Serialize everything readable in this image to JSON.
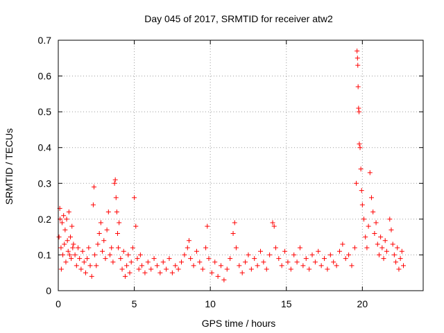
{
  "chart_data": {
    "type": "scatter",
    "title": "Day 045 of 2017, SRMTID for receiver atw2",
    "xlabel": "GPS time / hours",
    "ylabel": "SRMTID / TECUs",
    "xlim": [
      0,
      24
    ],
    "ylim": [
      0,
      0.7
    ],
    "x_ticks": [
      0,
      5,
      10,
      15,
      20
    ],
    "y_ticks": [
      0,
      0.1,
      0.2,
      0.3,
      0.4,
      0.5,
      0.6,
      0.7
    ],
    "x_tick_labels": [
      "0",
      "5",
      "10",
      "15",
      "20"
    ],
    "y_tick_labels": [
      "0",
      "0.1",
      "0.2",
      "0.3",
      "0.4",
      "0.5",
      "0.6",
      "0.7"
    ],
    "grid": true,
    "marker": "+",
    "series_color": "#ff0000",
    "series": [
      {
        "name": "SRMTID",
        "points": [
          [
            0.05,
            0.15
          ],
          [
            0.1,
            0.23
          ],
          [
            0.12,
            0.2
          ],
          [
            0.18,
            0.12
          ],
          [
            0.2,
            0.06
          ],
          [
            0.25,
            0.19
          ],
          [
            0.3,
            0.1
          ],
          [
            0.35,
            0.21
          ],
          [
            0.4,
            0.13
          ],
          [
            0.45,
            0.17
          ],
          [
            0.5,
            0.08
          ],
          [
            0.55,
            0.2
          ],
          [
            0.6,
            0.14
          ],
          [
            0.65,
            0.11
          ],
          [
            0.7,
            0.22
          ],
          [
            0.75,
            0.1
          ],
          [
            0.8,
            0.15
          ],
          [
            0.85,
            0.09
          ],
          [
            0.9,
            0.18
          ],
          [
            0.95,
            0.12
          ],
          [
            1.0,
            0.13
          ],
          [
            1.1,
            0.1
          ],
          [
            1.2,
            0.07
          ],
          [
            1.3,
            0.12
          ],
          [
            1.4,
            0.09
          ],
          [
            1.5,
            0.06
          ],
          [
            1.6,
            0.11
          ],
          [
            1.7,
            0.08
          ],
          [
            1.8,
            0.05
          ],
          [
            1.9,
            0.09
          ],
          [
            2.0,
            0.12
          ],
          [
            2.1,
            0.07
          ],
          [
            2.2,
            0.04
          ],
          [
            2.3,
            0.24
          ],
          [
            2.35,
            0.29
          ],
          [
            2.4,
            0.1
          ],
          [
            2.5,
            0.07
          ],
          [
            2.6,
            0.13
          ],
          [
            2.7,
            0.16
          ],
          [
            2.8,
            0.19
          ],
          [
            2.9,
            0.11
          ],
          [
            3.0,
            0.14
          ],
          [
            3.1,
            0.09
          ],
          [
            3.2,
            0.17
          ],
          [
            3.3,
            0.22
          ],
          [
            3.4,
            0.1
          ],
          [
            3.5,
            0.12
          ],
          [
            3.6,
            0.08
          ],
          [
            3.7,
            0.3
          ],
          [
            3.75,
            0.31
          ],
          [
            3.8,
            0.26
          ],
          [
            3.85,
            0.22
          ],
          [
            3.9,
            0.16
          ],
          [
            3.95,
            0.12
          ],
          [
            4.0,
            0.19
          ],
          [
            4.1,
            0.09
          ],
          [
            4.2,
            0.06
          ],
          [
            4.3,
            0.11
          ],
          [
            4.4,
            0.04
          ],
          [
            4.5,
            0.07
          ],
          [
            4.6,
            0.1
          ],
          [
            4.7,
            0.05
          ],
          [
            4.8,
            0.08
          ],
          [
            4.9,
            0.12
          ],
          [
            5.0,
            0.26
          ],
          [
            5.1,
            0.18
          ],
          [
            5.2,
            0.09
          ],
          [
            5.3,
            0.06
          ],
          [
            5.4,
            0.1
          ],
          [
            5.5,
            0.07
          ],
          [
            5.7,
            0.05
          ],
          [
            5.9,
            0.08
          ],
          [
            6.1,
            0.06
          ],
          [
            6.3,
            0.09
          ],
          [
            6.5,
            0.07
          ],
          [
            6.7,
            0.05
          ],
          [
            6.9,
            0.08
          ],
          [
            7.1,
            0.06
          ],
          [
            7.3,
            0.09
          ],
          [
            7.5,
            0.05
          ],
          [
            7.7,
            0.07
          ],
          [
            7.9,
            0.06
          ],
          [
            8.1,
            0.08
          ],
          [
            8.3,
            0.1
          ],
          [
            8.5,
            0.12
          ],
          [
            8.6,
            0.14
          ],
          [
            8.7,
            0.09
          ],
          [
            8.9,
            0.07
          ],
          [
            9.1,
            0.11
          ],
          [
            9.3,
            0.08
          ],
          [
            9.5,
            0.06
          ],
          [
            9.7,
            0.12
          ],
          [
            9.8,
            0.18
          ],
          [
            9.9,
            0.09
          ],
          [
            10.1,
            0.05
          ],
          [
            10.3,
            0.08
          ],
          [
            10.5,
            0.04
          ],
          [
            10.7,
            0.07
          ],
          [
            10.9,
            0.03
          ],
          [
            11.1,
            0.06
          ],
          [
            11.3,
            0.09
          ],
          [
            11.5,
            0.16
          ],
          [
            11.6,
            0.19
          ],
          [
            11.7,
            0.12
          ],
          [
            11.9,
            0.07
          ],
          [
            12.1,
            0.05
          ],
          [
            12.3,
            0.08
          ],
          [
            12.5,
            0.1
          ],
          [
            12.7,
            0.06
          ],
          [
            12.9,
            0.09
          ],
          [
            13.1,
            0.07
          ],
          [
            13.3,
            0.11
          ],
          [
            13.5,
            0.08
          ],
          [
            13.7,
            0.06
          ],
          [
            13.9,
            0.1
          ],
          [
            14.1,
            0.19
          ],
          [
            14.2,
            0.18
          ],
          [
            14.3,
            0.12
          ],
          [
            14.5,
            0.09
          ],
          [
            14.7,
            0.07
          ],
          [
            14.9,
            0.11
          ],
          [
            15.1,
            0.08
          ],
          [
            15.3,
            0.06
          ],
          [
            15.5,
            0.1
          ],
          [
            15.7,
            0.08
          ],
          [
            15.9,
            0.12
          ],
          [
            16.1,
            0.07
          ],
          [
            16.3,
            0.09
          ],
          [
            16.5,
            0.06
          ],
          [
            16.7,
            0.1
          ],
          [
            16.9,
            0.08
          ],
          [
            17.1,
            0.11
          ],
          [
            17.3,
            0.07
          ],
          [
            17.5,
            0.09
          ],
          [
            17.7,
            0.06
          ],
          [
            17.9,
            0.1
          ],
          [
            18.1,
            0.08
          ],
          [
            18.3,
            0.07
          ],
          [
            18.5,
            0.11
          ],
          [
            18.7,
            0.13
          ],
          [
            18.9,
            0.09
          ],
          [
            19.1,
            0.1
          ],
          [
            19.3,
            0.07
          ],
          [
            19.5,
            0.12
          ],
          [
            19.6,
            0.3
          ],
          [
            19.65,
            0.67
          ],
          [
            19.68,
            0.65
          ],
          [
            19.7,
            0.63
          ],
          [
            19.72,
            0.57
          ],
          [
            19.75,
            0.51
          ],
          [
            19.78,
            0.5
          ],
          [
            19.8,
            0.41
          ],
          [
            19.85,
            0.4
          ],
          [
            19.9,
            0.34
          ],
          [
            19.95,
            0.28
          ],
          [
            20.0,
            0.24
          ],
          [
            20.1,
            0.2
          ],
          [
            20.2,
            0.15
          ],
          [
            20.3,
            0.12
          ],
          [
            20.4,
            0.18
          ],
          [
            20.5,
            0.33
          ],
          [
            20.6,
            0.26
          ],
          [
            20.7,
            0.22
          ],
          [
            20.8,
            0.16
          ],
          [
            20.9,
            0.19
          ],
          [
            21.0,
            0.13
          ],
          [
            21.1,
            0.1
          ],
          [
            21.2,
            0.15
          ],
          [
            21.3,
            0.12
          ],
          [
            21.4,
            0.09
          ],
          [
            21.5,
            0.14
          ],
          [
            21.6,
            0.11
          ],
          [
            21.8,
            0.2
          ],
          [
            21.9,
            0.17
          ],
          [
            22.0,
            0.13
          ],
          [
            22.1,
            0.1
          ],
          [
            22.2,
            0.08
          ],
          [
            22.3,
            0.12
          ],
          [
            22.4,
            0.06
          ],
          [
            22.5,
            0.09
          ],
          [
            22.6,
            0.11
          ],
          [
            22.7,
            0.07
          ]
        ]
      }
    ]
  }
}
